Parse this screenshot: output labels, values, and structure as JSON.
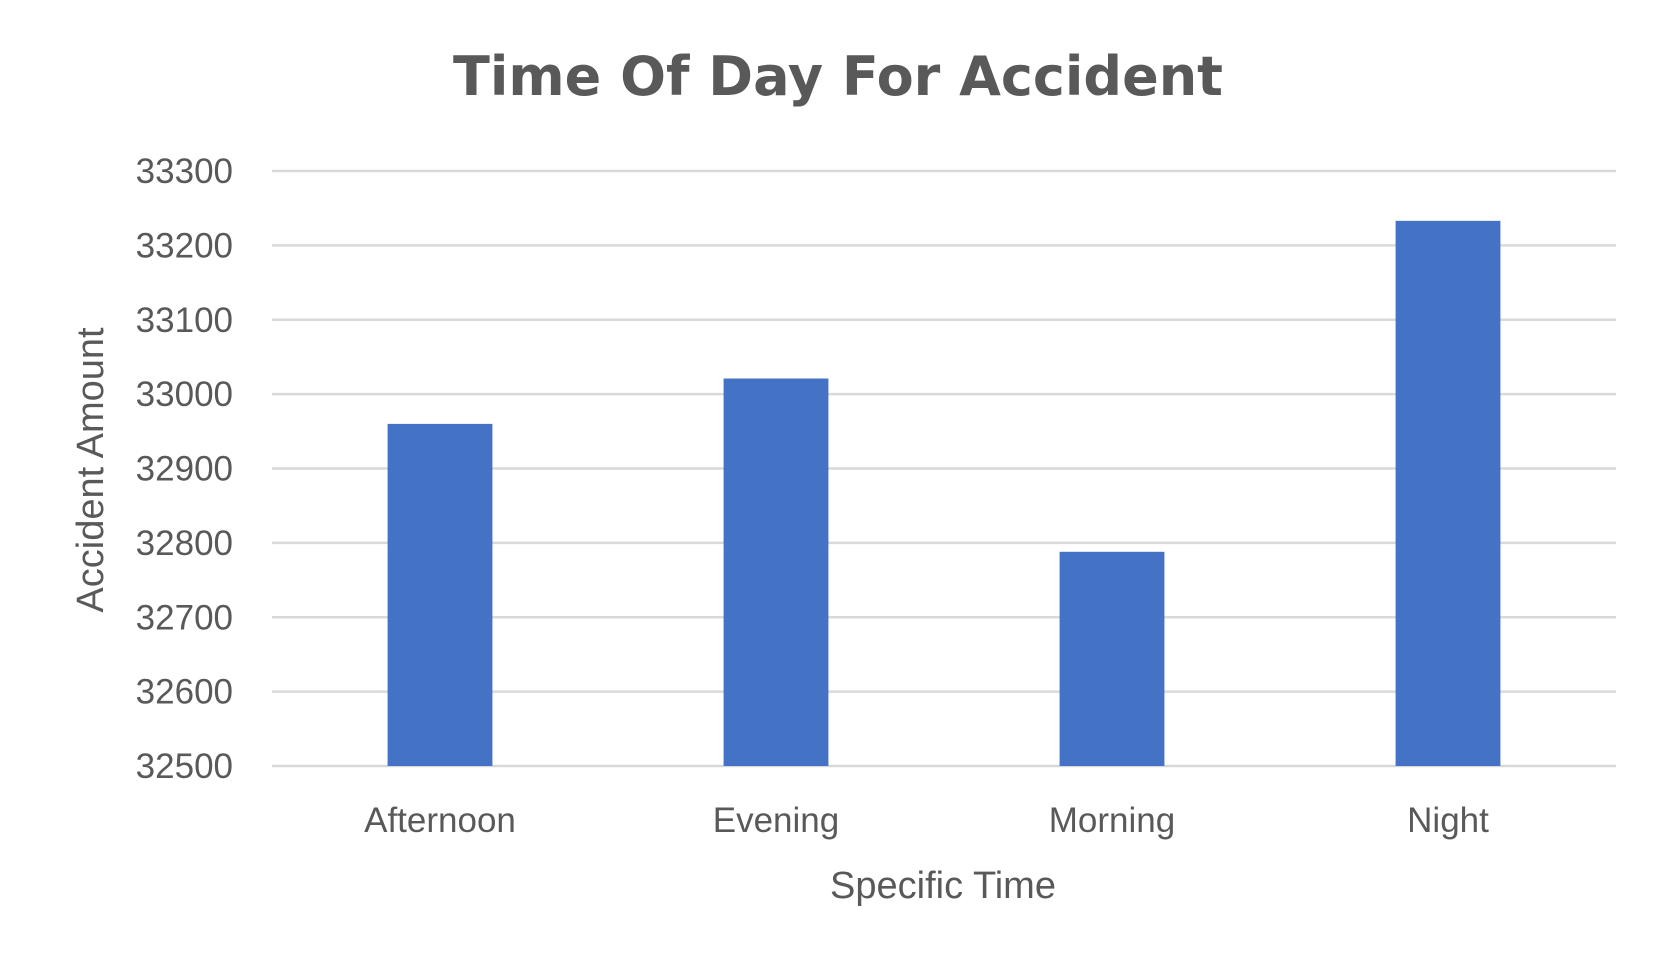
{
  "chart_data": {
    "type": "bar",
    "title": "Time Of Day For Accident",
    "xlabel": "Specific Time",
    "ylabel": "Accident Amount",
    "categories": [
      "Afternoon",
      "Evening",
      "Morning",
      "Night"
    ],
    "values": [
      32960,
      33021,
      32788,
      33233
    ],
    "ylim": [
      32500,
      33300
    ],
    "yticks": [
      32500,
      32600,
      32700,
      32800,
      32900,
      33000,
      33100,
      33200,
      33300
    ],
    "grid": true,
    "legend": "none",
    "bar_color": "#4472C4",
    "gridline_color": "#D9D9D9",
    "text_color": "#595959"
  }
}
